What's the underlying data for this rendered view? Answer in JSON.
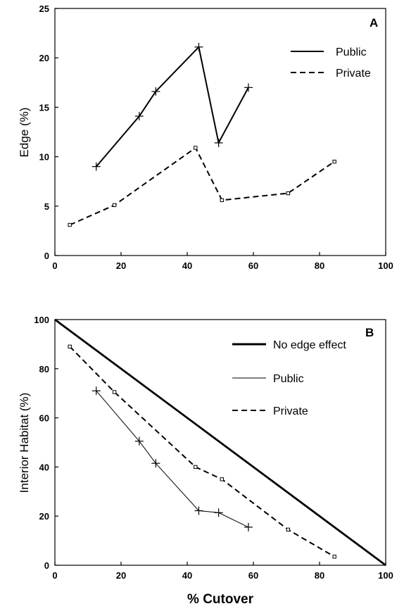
{
  "figure": {
    "x_label": "% Cutover"
  },
  "chart_data": [
    {
      "type": "line",
      "panel": "A",
      "xlabel": "",
      "ylabel": "Edge (%)",
      "xlim": [
        0,
        100
      ],
      "ylim": [
        0,
        25
      ],
      "x_ticks": [
        "0",
        "20",
        "40",
        "60",
        "80",
        "100"
      ],
      "y_ticks": [
        "0",
        "5",
        "10",
        "15",
        "20",
        "25"
      ],
      "legend_position": "top-right",
      "series": [
        {
          "name": "Public",
          "style": "solid",
          "marker": "plus",
          "x": [
            12.5,
            25.5,
            30.5,
            43.5,
            49.5,
            58.5
          ],
          "y": [
            9.0,
            14.1,
            16.6,
            21.1,
            11.4,
            17.0
          ]
        },
        {
          "name": "Private",
          "style": "dashed",
          "marker": "square",
          "x": [
            4.5,
            18,
            42.5,
            50.5,
            70.5,
            84.5
          ],
          "y": [
            3.1,
            5.1,
            10.9,
            5.6,
            6.3,
            9.5
          ]
        }
      ]
    },
    {
      "type": "line",
      "panel": "B",
      "xlabel": "% Cutover",
      "ylabel": "Interior Habitat (%)",
      "xlim": [
        0,
        100
      ],
      "ylim": [
        0,
        100
      ],
      "x_ticks": [
        "0",
        "20",
        "40",
        "60",
        "80",
        "100"
      ],
      "y_ticks": [
        "0",
        "20",
        "40",
        "60",
        "80",
        "100"
      ],
      "legend_position": "top-right",
      "series": [
        {
          "name": "No edge effect",
          "style": "thick-solid",
          "marker": "none",
          "x": [
            0,
            100
          ],
          "y": [
            100,
            0
          ]
        },
        {
          "name": "Public",
          "style": "thin-solid",
          "marker": "plus",
          "x": [
            12.5,
            25.5,
            30.5,
            43.5,
            49.5,
            58.5
          ],
          "y": [
            71,
            50.5,
            41.5,
            22.2,
            21.4,
            15.5
          ]
        },
        {
          "name": "Private",
          "style": "dashed",
          "marker": "square",
          "x": [
            4.5,
            18,
            42.5,
            50.5,
            70.5,
            84.5
          ],
          "y": [
            89,
            70.5,
            40,
            35,
            14.5,
            3.5
          ]
        }
      ]
    }
  ]
}
